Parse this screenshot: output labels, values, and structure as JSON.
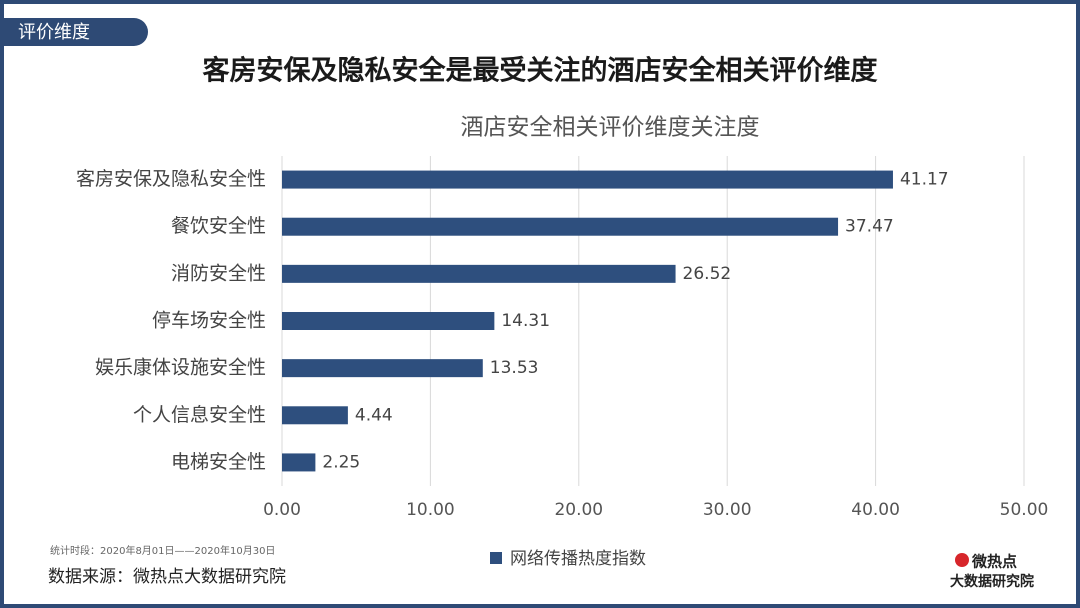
{
  "header": {
    "tag": "评价维度",
    "title": "客房安保及隐私安全是最受关注的酒店安全相关评价维度"
  },
  "chart_data": {
    "type": "bar",
    "orientation": "horizontal",
    "title": "酒店安全相关评价维度关注度",
    "categories": [
      "客房安保及隐私安全性",
      "餐饮安全性",
      "消防安全性",
      "停车场安全性",
      "娱乐康体设施安全性",
      "个人信息安全性",
      "电梯安全性"
    ],
    "series": [
      {
        "name": "网络传播热度指数",
        "color": "#2e4f7e",
        "values": [
          41.17,
          37.47,
          26.52,
          14.31,
          13.53,
          4.44,
          2.25
        ]
      }
    ],
    "xlim": [
      0,
      50
    ],
    "xticks": [
      {
        "value": 0,
        "label": "0.00"
      },
      {
        "value": 10,
        "label": "10.00"
      },
      {
        "value": 20,
        "label": "20.00"
      },
      {
        "value": 30,
        "label": "30.00"
      },
      {
        "value": 40,
        "label": "40.00"
      },
      {
        "value": 50,
        "label": "50.00"
      }
    ],
    "grid": true,
    "legend": "bottom"
  },
  "footer": {
    "period": "统计时段：2020年8月01日——2020年10月30日",
    "source": "数据来源：微热点大数据研究院",
    "logo": [
      "微热点",
      "大数据研究院"
    ]
  }
}
